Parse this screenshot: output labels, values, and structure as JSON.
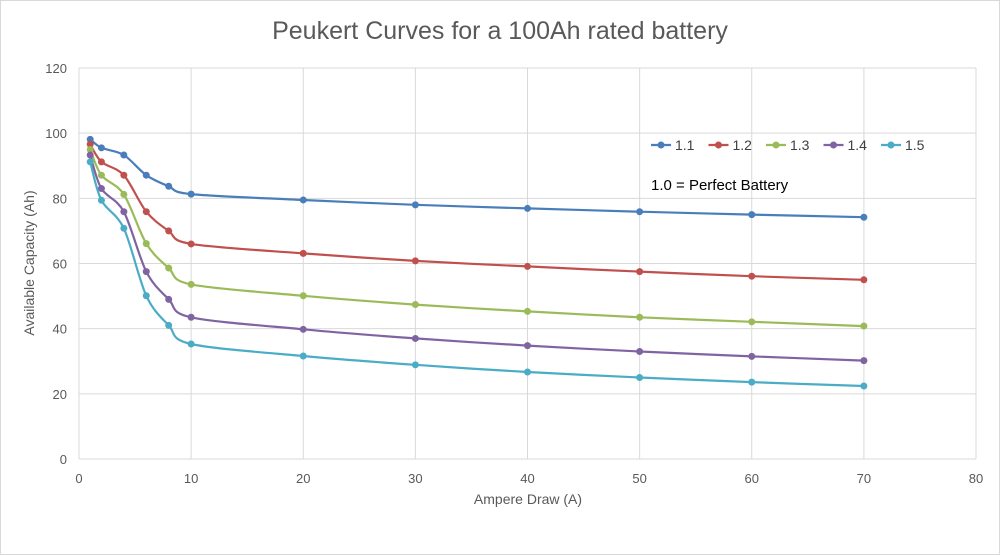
{
  "chart_data": {
    "type": "line",
    "title": "Peukert Curves for a 100Ah rated battery",
    "xlabel": "Ampere Draw (A)",
    "ylabel": "Available Capacity (Ah)",
    "xlim": [
      0,
      80
    ],
    "ylim": [
      0,
      120
    ],
    "xticks": [
      0,
      10,
      20,
      30,
      40,
      50,
      60,
      70,
      80
    ],
    "yticks": [
      0,
      20,
      40,
      60,
      80,
      100,
      120
    ],
    "grid": true,
    "legend_position": "top-right",
    "annotation": "1.0 = Perfect Battery",
    "x": [
      1,
      2,
      4,
      6,
      8,
      10,
      20,
      30,
      40,
      50,
      60,
      70
    ],
    "series": [
      {
        "name": "1.1",
        "color": "#4a7ebb",
        "values": [
          98.1,
          95.5,
          93.3,
          87.1,
          83.7,
          81.3,
          79.5,
          78.0,
          76.9,
          75.9,
          75.0,
          74.2
        ]
      },
      {
        "name": "1.2",
        "color": "#c0504d",
        "values": [
          96.6,
          91.2,
          87.1,
          75.9,
          70.0,
          66.0,
          63.1,
          60.8,
          59.1,
          57.5,
          56.1,
          55.0
        ]
      },
      {
        "name": "1.3",
        "color": "#9bbb59",
        "values": [
          95.0,
          87.1,
          81.2,
          66.1,
          58.6,
          53.6,
          50.1,
          47.4,
          45.3,
          43.5,
          42.1,
          40.8
        ]
      },
      {
        "name": "1.4",
        "color": "#8064a2",
        "values": [
          93.3,
          83.0,
          75.9,
          57.5,
          49.0,
          43.5,
          39.8,
          37.0,
          34.8,
          33.0,
          31.5,
          30.2
        ]
      },
      {
        "name": "1.5",
        "color": "#4bacc6",
        "values": [
          91.2,
          79.4,
          70.8,
          50.1,
          41.0,
          35.3,
          31.6,
          28.9,
          26.7,
          25.0,
          23.6,
          22.4
        ]
      }
    ]
  }
}
